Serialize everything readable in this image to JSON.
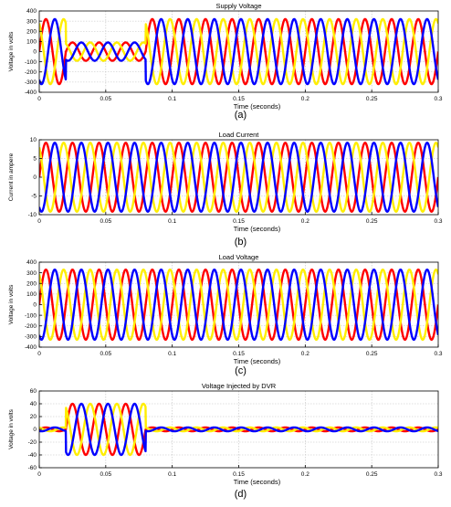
{
  "figure": {
    "phase_colors": [
      "#ff0000",
      "#ffee00",
      "#0000ff"
    ],
    "axes_color": "#000000",
    "grid_color": "#c0c0c0"
  },
  "chart_data": [
    {
      "type": "line",
      "panel_label": "(a)",
      "title": "Supply Voltage",
      "xlabel": "Time (seconds)",
      "ylabel": "Voltage in volts",
      "xlim": [
        0,
        0.3
      ],
      "ylim": [
        -400,
        400
      ],
      "xticks": [
        0,
        0.05,
        0.1,
        0.15,
        0.2,
        0.25,
        0.3
      ],
      "xtick_labels": [
        "0",
        "0.05",
        "0.1",
        "0.15",
        "0.2",
        "0.25",
        "0.3"
      ],
      "yticks": [
        -400,
        -300,
        -200,
        -100,
        0,
        100,
        200,
        300,
        400
      ],
      "ytick_labels": [
        "-400",
        "-300",
        "-200",
        "-100",
        "0",
        "100",
        "200",
        "300",
        "400"
      ],
      "grid": true,
      "frequency_hz": 50,
      "series": [
        {
          "phase_deg": 0,
          "segments": [
            {
              "t0": 0,
              "t1": 0.02,
              "amplitude": 320
            },
            {
              "t0": 0.02,
              "t1": 0.08,
              "amplitude": 90
            },
            {
              "t0": 0.08,
              "t1": 0.3,
              "amplitude": 320
            }
          ]
        },
        {
          "phase_deg": 120,
          "segments": [
            {
              "t0": 0,
              "t1": 0.02,
              "amplitude": 320
            },
            {
              "t0": 0.02,
              "t1": 0.08,
              "amplitude": 90
            },
            {
              "t0": 0.08,
              "t1": 0.3,
              "amplitude": 320
            }
          ]
        },
        {
          "phase_deg": -120,
          "segments": [
            {
              "t0": 0,
              "t1": 0.02,
              "amplitude": 320
            },
            {
              "t0": 0.02,
              "t1": 0.08,
              "amplitude": 90
            },
            {
              "t0": 0.08,
              "t1": 0.3,
              "amplitude": 320
            }
          ]
        }
      ]
    },
    {
      "type": "line",
      "panel_label": "(b)",
      "title": "Load Current",
      "xlabel": "Time (seconds)",
      "ylabel": "Current in ampere",
      "xlim": [
        0,
        0.3
      ],
      "ylim": [
        -10,
        10
      ],
      "xticks": [
        0,
        0.05,
        0.1,
        0.15,
        0.2,
        0.25,
        0.3
      ],
      "xtick_labels": [
        "0",
        "0.05",
        "0.1",
        "0.15",
        "0.2",
        "0.25",
        "0.3"
      ],
      "yticks": [
        -10,
        -5,
        0,
        5,
        10
      ],
      "ytick_labels": [
        "-10",
        "-5",
        "0",
        "5",
        "10"
      ],
      "grid": true,
      "frequency_hz": 50,
      "series": [
        {
          "phase_deg": 0,
          "segments": [
            {
              "t0": 0,
              "t1": 0.3,
              "amplitude": 9.2
            }
          ]
        },
        {
          "phase_deg": 120,
          "segments": [
            {
              "t0": 0,
              "t1": 0.3,
              "amplitude": 9.2
            }
          ]
        },
        {
          "phase_deg": -120,
          "segments": [
            {
              "t0": 0,
              "t1": 0.3,
              "amplitude": 9.2
            }
          ]
        }
      ]
    },
    {
      "type": "line",
      "panel_label": "(c)",
      "title": "Load Voltage",
      "xlabel": "Time (seconds)",
      "ylabel": "Voltage in volts",
      "xlim": [
        0,
        0.3
      ],
      "ylim": [
        -400,
        400
      ],
      "xticks": [
        0,
        0.05,
        0.1,
        0.15,
        0.2,
        0.25,
        0.3
      ],
      "xtick_labels": [
        "0",
        "0.05",
        "0.1",
        "0.15",
        "0.2",
        "0.25",
        "0.3"
      ],
      "yticks": [
        -400,
        -300,
        -200,
        -100,
        0,
        100,
        200,
        300,
        400
      ],
      "ytick_labels": [
        "-400",
        "-300",
        "-200",
        "-100",
        "0",
        "100",
        "200",
        "300",
        "400"
      ],
      "grid": true,
      "frequency_hz": 50,
      "series": [
        {
          "phase_deg": 0,
          "segments": [
            {
              "t0": 0,
              "t1": 0.3,
              "amplitude": 330
            }
          ]
        },
        {
          "phase_deg": 120,
          "segments": [
            {
              "t0": 0,
              "t1": 0.3,
              "amplitude": 330
            }
          ]
        },
        {
          "phase_deg": -120,
          "segments": [
            {
              "t0": 0,
              "t1": 0.3,
              "amplitude": 330
            }
          ]
        }
      ]
    },
    {
      "type": "line",
      "panel_label": "(d)",
      "title": "Voltage Injected by DVR",
      "xlabel": "Time (seconds)",
      "ylabel": "Voltage in volts",
      "xlim": [
        0,
        0.3
      ],
      "ylim": [
        -60,
        60
      ],
      "xticks": [
        0,
        0.05,
        0.1,
        0.15,
        0.2,
        0.25,
        0.3
      ],
      "xtick_labels": [
        "0",
        "0.05",
        "0.1",
        "0.15",
        "0.2",
        "0.25",
        "0.3"
      ],
      "yticks": [
        -60,
        -40,
        -20,
        0,
        20,
        40,
        60
      ],
      "ytick_labels": [
        "-60",
        "-40",
        "-20",
        "0",
        "20",
        "40",
        "60"
      ],
      "grid": true,
      "frequency_hz": 50,
      "series": [
        {
          "phase_deg": 0,
          "segments": [
            {
              "t0": 0,
              "t1": 0.02,
              "amplitude": 3
            },
            {
              "t0": 0.02,
              "t1": 0.08,
              "amplitude": 40
            },
            {
              "t0": 0.08,
              "t1": 0.3,
              "amplitude": 3
            }
          ]
        },
        {
          "phase_deg": 120,
          "segments": [
            {
              "t0": 0,
              "t1": 0.02,
              "amplitude": 3
            },
            {
              "t0": 0.02,
              "t1": 0.08,
              "amplitude": 40
            },
            {
              "t0": 0.08,
              "t1": 0.3,
              "amplitude": 3
            }
          ]
        },
        {
          "phase_deg": -120,
          "segments": [
            {
              "t0": 0,
              "t1": 0.02,
              "amplitude": 3
            },
            {
              "t0": 0.02,
              "t1": 0.08,
              "amplitude": 40
            },
            {
              "t0": 0.08,
              "t1": 0.3,
              "amplitude": 3
            }
          ]
        }
      ]
    }
  ]
}
